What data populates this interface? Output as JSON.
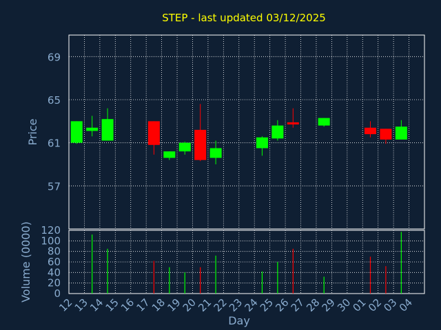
{
  "chart_data": {
    "type": "candlestick",
    "title": "STEP - last updated 03/12/2025",
    "xlabel": "Day",
    "price_panel": {
      "ylabel": "Price",
      "ylim": [
        53,
        71
      ],
      "yticks": [
        57,
        61,
        65,
        69
      ]
    },
    "volume_panel": {
      "ylabel": "Volume (0000)",
      "ylim": [
        0,
        120
      ],
      "yticks": [
        0,
        20,
        40,
        60,
        80,
        100,
        120
      ]
    },
    "x_ticks": [
      "12",
      "13",
      "14",
      "15",
      "16",
      "17",
      "18",
      "19",
      "20",
      "21",
      "22",
      "23",
      "24",
      "25",
      "26",
      "27",
      "28",
      "29",
      "30",
      "01",
      "02",
      "03",
      "04"
    ],
    "candles": [
      {
        "slot": 0,
        "day": "12",
        "open": 61.0,
        "high": 63.0,
        "low": 60.9,
        "close": 63.0,
        "volume": 0
      },
      {
        "slot": 1,
        "day": "13",
        "open": 62.1,
        "high": 63.5,
        "low": 61.6,
        "close": 62.4,
        "volume": 112
      },
      {
        "slot": 2,
        "day": "14",
        "open": 61.2,
        "high": 64.2,
        "low": 61.2,
        "close": 63.2,
        "volume": 85
      },
      {
        "slot": 5,
        "day": "17",
        "open": 63.0,
        "high": 63.0,
        "low": 59.9,
        "close": 60.8,
        "volume": 62
      },
      {
        "slot": 6,
        "day": "18",
        "open": 59.6,
        "high": 60.2,
        "low": 59.4,
        "close": 60.2,
        "volume": 50
      },
      {
        "slot": 7,
        "day": "19",
        "open": 60.2,
        "high": 61.1,
        "low": 59.9,
        "close": 61.0,
        "volume": 40
      },
      {
        "slot": 8,
        "day": "20",
        "open": 62.2,
        "high": 64.6,
        "low": 59.3,
        "close": 59.4,
        "volume": 50
      },
      {
        "slot": 9,
        "day": "21",
        "open": 59.6,
        "high": 61.2,
        "low": 59.0,
        "close": 60.5,
        "volume": 72
      },
      {
        "slot": 12,
        "day": "24",
        "open": 60.5,
        "high": 61.6,
        "low": 59.8,
        "close": 61.5,
        "volume": 42
      },
      {
        "slot": 13,
        "day": "25",
        "open": 61.4,
        "high": 63.1,
        "low": 61.2,
        "close": 62.6,
        "volume": 60
      },
      {
        "slot": 14,
        "day": "26",
        "open": 62.9,
        "high": 64.2,
        "low": 62.4,
        "close": 62.7,
        "volume": 85
      },
      {
        "slot": 16,
        "day": "28",
        "open": 62.6,
        "high": 63.3,
        "low": 62.5,
        "close": 63.3,
        "volume": 32
      },
      {
        "slot": 19,
        "day": "01",
        "open": 62.4,
        "high": 63.0,
        "low": 61.5,
        "close": 61.8,
        "volume": 70
      },
      {
        "slot": 20,
        "day": "02",
        "open": 62.3,
        "high": 62.3,
        "low": 60.9,
        "close": 61.3,
        "volume": 52
      },
      {
        "slot": 21,
        "day": "03",
        "open": 61.3,
        "high": 63.1,
        "low": 61.3,
        "close": 62.5,
        "volume": 117
      }
    ],
    "grid": true,
    "colors": {
      "background": "#0f1f33",
      "up": "#00ff00",
      "down": "#ff0000",
      "grid": "#ffffff",
      "axis_text": "#8aaccf",
      "title": "#ffff00"
    }
  }
}
